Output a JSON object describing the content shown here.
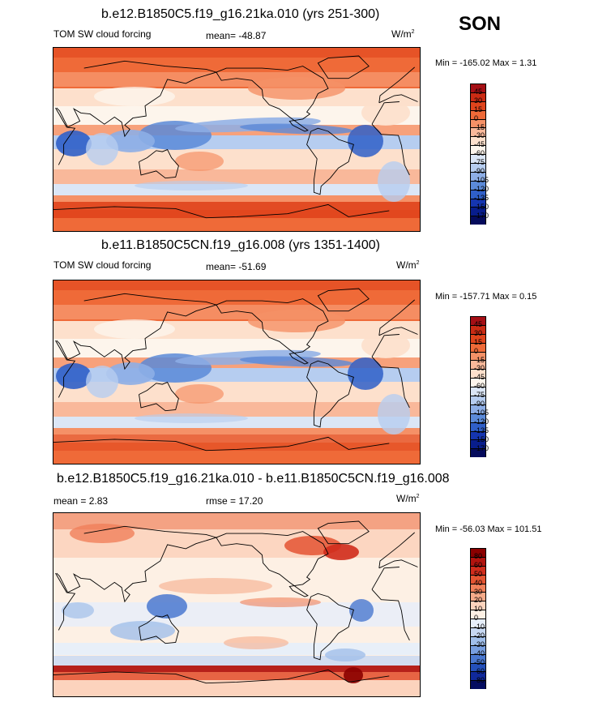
{
  "season": "SON",
  "panels": [
    {
      "title": "b.e12.B1850C5.f19_g16.21ka.010 (yrs 251-300)",
      "left_label": "TOM SW cloud forcing",
      "center_label": "mean= -48.87",
      "units": "W/m",
      "units_sup": "2",
      "min_max": "Min = -165.02 Max =   1.31",
      "colorbar_levels": [
        "45",
        "30",
        "15",
        "0",
        "-15",
        "-30",
        "-45",
        "-60",
        "-75",
        "-90",
        "-105",
        "-120",
        "-135",
        "-150",
        "-170"
      ],
      "colorbar_colors": [
        "#a50f15",
        "#cb2b14",
        "#e0441c",
        "#ef6a38",
        "#f59167",
        "#f9b89a",
        "#fde0cc",
        "#fdf5ec",
        "#dbe6f6",
        "#b6cdf0",
        "#8daee6",
        "#5b8ad8",
        "#2f5fc8",
        "#1535b0",
        "#081d8c",
        "#050b5c"
      ],
      "map_type": "control"
    },
    {
      "title": "b.e11.B1850C5CN.f19_g16.008 (yrs 1351-1400)",
      "left_label": "TOM SW cloud forcing",
      "center_label": "mean= -51.69",
      "units": "W/m",
      "units_sup": "2",
      "min_max": "Min = -157.71 Max =   0.15",
      "colorbar_levels": [
        "45",
        "30",
        "15",
        "0",
        "-15",
        "-30",
        "-45",
        "-60",
        "-75",
        "-90",
        "-105",
        "-120",
        "-135",
        "-150",
        "-170"
      ],
      "colorbar_colors": [
        "#a50f15",
        "#cb2b14",
        "#e0441c",
        "#ef6a38",
        "#f59167",
        "#f9b89a",
        "#fde0cc",
        "#fdf5ec",
        "#dbe6f6",
        "#b6cdf0",
        "#8daee6",
        "#5b8ad8",
        "#2f5fc8",
        "#1535b0",
        "#081d8c",
        "#050b5c"
      ],
      "map_type": "control"
    },
    {
      "title": "b.e12.B1850C5.f19_g16.21ka.010 - b.e11.B1850C5CN.f19_g16.008",
      "left_label": "mean =   2.83",
      "center_label": "rmse =  17.20",
      "units": "W/m",
      "units_sup": "2",
      "min_max": "Min = -56.03 Max = 101.51",
      "colorbar_levels": [
        "80",
        "60",
        "50",
        "40",
        "30",
        "20",
        "10",
        "0",
        "-10",
        "-20",
        "-30",
        "-40",
        "-50",
        "-60",
        "-80"
      ],
      "colorbar_colors": [
        "#8b0000",
        "#b2140f",
        "#d02c1c",
        "#e45432",
        "#f0805a",
        "#f7ab8a",
        "#fcd3bd",
        "#fdf0e4",
        "#e6eefa",
        "#c7d8f2",
        "#a1bfea",
        "#789fe0",
        "#4a78d0",
        "#2450bb",
        "#10299c",
        "#040c60"
      ],
      "map_type": "difference"
    }
  ]
}
